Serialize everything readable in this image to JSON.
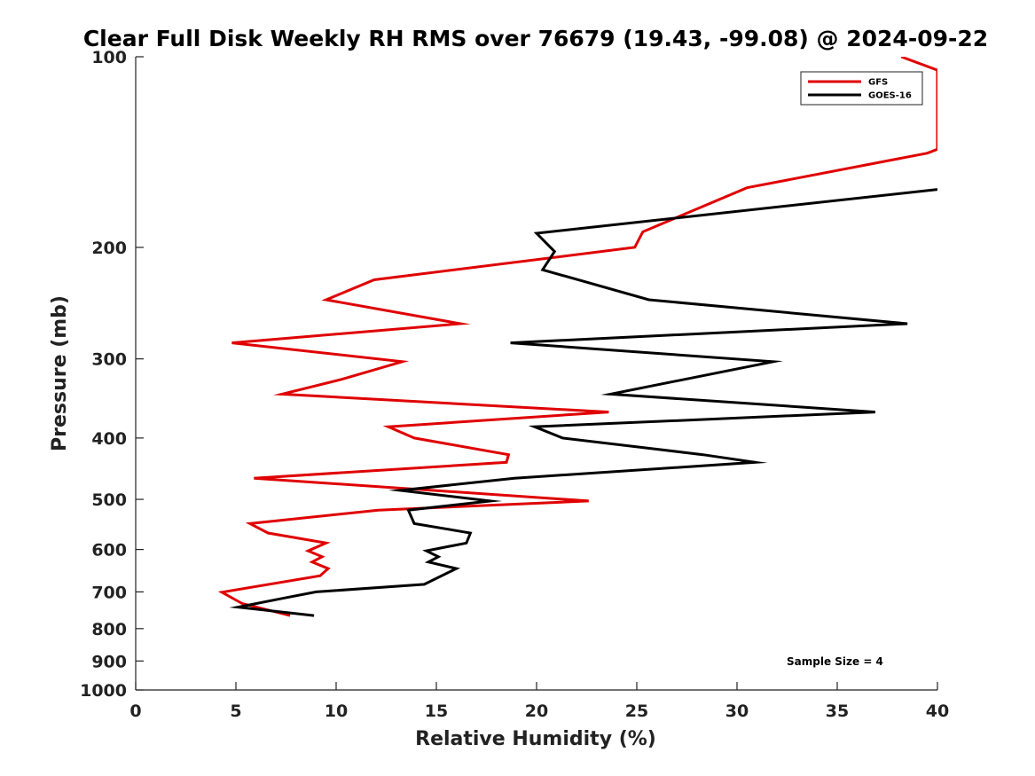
{
  "chart_data": {
    "type": "line",
    "title": "Clear Full Disk Weekly RH RMS over 76679 (19.43, -99.08) @ 2024-09-22",
    "xlabel": "Relative Humidity (%)",
    "ylabel": "Pressure (mb)",
    "xlim": [
      0,
      40
    ],
    "ylim": [
      1000,
      100
    ],
    "yscale": "log",
    "xticks": [
      "0",
      "5",
      "10",
      "15",
      "20",
      "25",
      "30",
      "35",
      "40"
    ],
    "yticks": [
      "100",
      "200",
      "300",
      "400",
      "500",
      "600",
      "700",
      "800",
      "900",
      "1000"
    ],
    "legend_position": "top-right",
    "annotation": "Sample Size = 4",
    "series": [
      {
        "name": "GFS",
        "color": "#e00000",
        "points": [
          [
            38.2,
            100
          ],
          [
            40,
            105
          ],
          [
            40,
            140
          ],
          [
            39.5,
            142
          ],
          [
            30.5,
            161
          ],
          [
            25.3,
            189
          ],
          [
            24.9,
            200
          ],
          [
            11.9,
            225
          ],
          [
            9.5,
            242
          ],
          [
            16.2,
            264
          ],
          [
            4.8,
            283
          ],
          [
            13.3,
            303
          ],
          [
            10.3,
            323
          ],
          [
            7.3,
            341
          ],
          [
            23.6,
            364
          ],
          [
            12.6,
            384
          ],
          [
            13.9,
            400
          ],
          [
            18.6,
            425
          ],
          [
            18.5,
            437
          ],
          [
            5.9,
            463
          ],
          [
            22.6,
            503
          ],
          [
            12.1,
            520
          ],
          [
            5.7,
            546
          ],
          [
            6.6,
            565
          ],
          [
            9.5,
            586
          ],
          [
            8.6,
            603
          ],
          [
            9.3,
            616
          ],
          [
            8.8,
            628
          ],
          [
            9.6,
            643
          ],
          [
            9.2,
            660
          ],
          [
            4.3,
            701
          ],
          [
            5.3,
            730
          ],
          [
            7.7,
            763
          ]
        ]
      },
      {
        "name": "GOES-16",
        "color": "#000000",
        "points": [
          [
            40,
            162
          ],
          [
            20,
            190
          ],
          [
            20.9,
            203
          ],
          [
            20.3,
            217
          ],
          [
            25.6,
            242
          ],
          [
            38.5,
            264
          ],
          [
            18.7,
            283
          ],
          [
            31.8,
            303
          ],
          [
            23.7,
            341
          ],
          [
            36.9,
            364
          ],
          [
            19.9,
            384
          ],
          [
            21.3,
            400
          ],
          [
            28.3,
            425
          ],
          [
            30.9,
            437
          ],
          [
            18.9,
            463
          ],
          [
            13.2,
            484
          ],
          [
            17.7,
            503
          ],
          [
            13.6,
            520
          ],
          [
            13.9,
            546
          ],
          [
            16.7,
            565
          ],
          [
            16.5,
            586
          ],
          [
            14.5,
            603
          ],
          [
            15.1,
            616
          ],
          [
            14.6,
            628
          ],
          [
            16,
            643
          ],
          [
            14.4,
            681
          ],
          [
            9,
            700
          ],
          [
            7.3,
            717
          ],
          [
            5.1,
            740
          ],
          [
            8.9,
            763
          ]
        ]
      }
    ]
  }
}
